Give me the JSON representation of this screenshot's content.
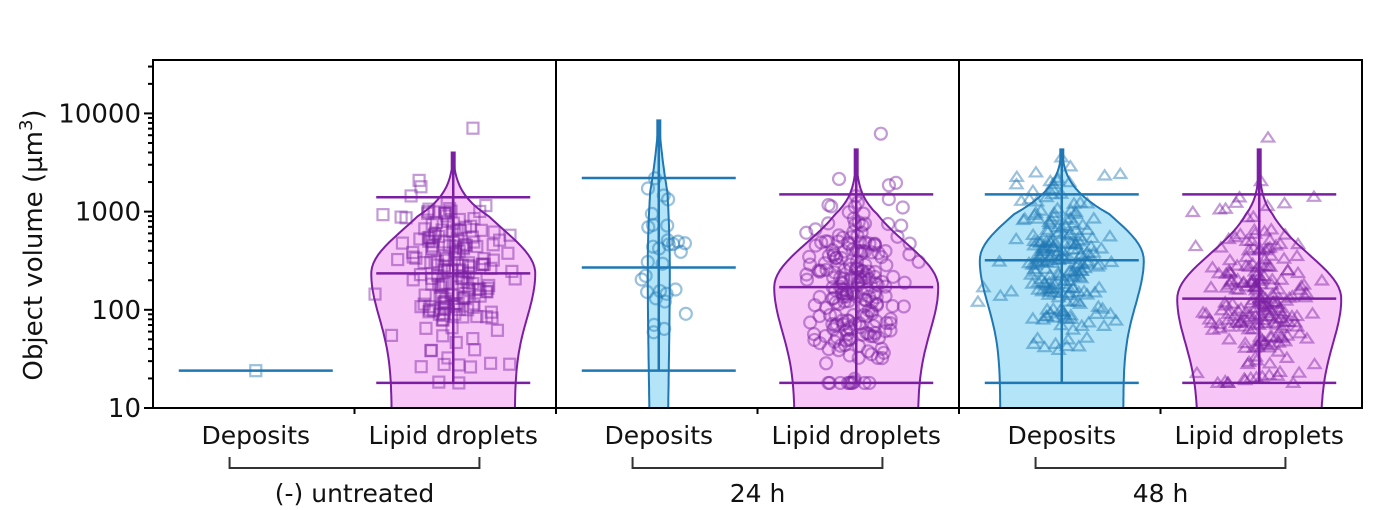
{
  "colors": {
    "deposits_stroke": "#1f77b4",
    "deposits_fill": "#b3e4f7",
    "lipid_stroke": "#7b1fa2",
    "lipid_fill": "#f7c6f7",
    "axis": "#000000"
  },
  "chart_data": {
    "type": "violin",
    "title": "",
    "ylabel": "Object volume (µm",
    "ylabel_sup": "3",
    "ylabel_end": ")",
    "yscale": "log",
    "ylim": [
      10,
      35000
    ],
    "yticks": [
      {
        "value": 10,
        "label": "10"
      },
      {
        "value": 100,
        "label": "100"
      },
      {
        "value": 1000,
        "label": "1000"
      },
      {
        "value": 10000,
        "label": "10000"
      }
    ],
    "panels": [
      {
        "group_label": "(-) untreated",
        "marker": "square",
        "categories": [
          {
            "label": "Deposits",
            "series": "deposits",
            "min": 24,
            "median": 24,
            "max": 24,
            "n": 1
          },
          {
            "label": "Lipid droplets",
            "series": "lipid",
            "min": 18,
            "median": 235,
            "max": 1400,
            "whisker_top": 4000,
            "n": 180
          }
        ]
      },
      {
        "group_label": "24 h",
        "marker": "circle",
        "categories": [
          {
            "label": "Deposits",
            "series": "deposits",
            "min": 24,
            "median": 270,
            "max": 2200,
            "whisker_top": 8500,
            "n": 30
          },
          {
            "label": "Lipid droplets",
            "series": "lipid",
            "min": 18,
            "median": 170,
            "max": 1500,
            "whisker_top": 4300,
            "n": 250
          }
        ]
      },
      {
        "group_label": "48 h",
        "marker": "triangle",
        "categories": [
          {
            "label": "Deposits",
            "series": "deposits",
            "min": 18,
            "median": 320,
            "max": 1500,
            "whisker_top": 4300,
            "n": 260
          },
          {
            "label": "Lipid droplets",
            "series": "lipid",
            "min": 18,
            "median": 130,
            "max": 1500,
            "whisker_top": 4300,
            "n": 320
          }
        ]
      }
    ]
  }
}
